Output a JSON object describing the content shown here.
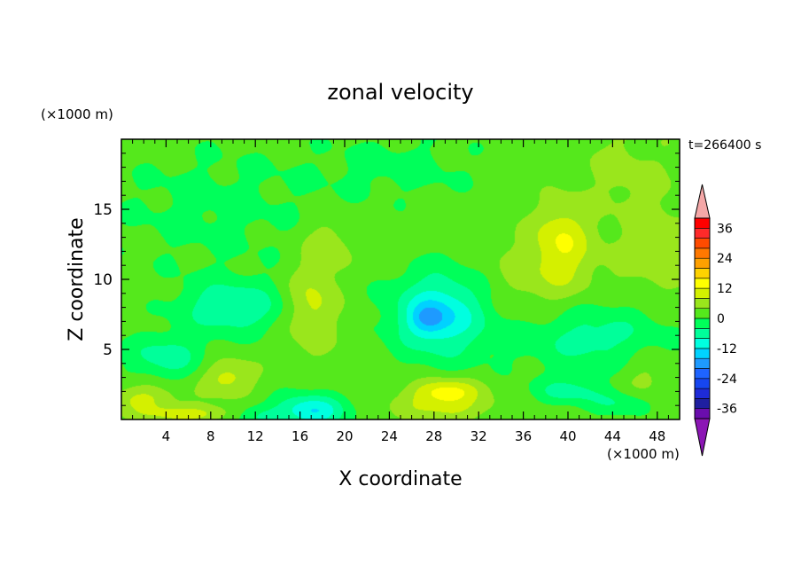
{
  "chart_data": {
    "type": "heatmap",
    "title": "zonal velocity",
    "xlabel": "X coordinate",
    "ylabel": "Z coordinate",
    "x_unit": "(×1000 m)",
    "y_unit": "(×1000 m)",
    "time_label": "t=266400 s",
    "xlim": [
      0,
      50
    ],
    "ylim": [
      0,
      20
    ],
    "x_ticks": [
      4,
      8,
      12,
      16,
      20,
      24,
      28,
      32,
      36,
      40,
      44,
      48
    ],
    "y_ticks": [
      5,
      10,
      15
    ],
    "colorbar": {
      "levels": [
        -40,
        -36,
        -32,
        -28,
        -24,
        -20,
        -16,
        -12,
        -8,
        -4,
        0,
        4,
        8,
        12,
        16,
        20,
        24,
        28,
        32,
        36,
        40
      ],
      "tick_labels": [
        36,
        24,
        12,
        0,
        -12,
        -24,
        -36
      ],
      "colors": [
        "#6a0dad",
        "#1f1fa0",
        "#1e2bd8",
        "#1646f0",
        "#1e64ff",
        "#1e9aff",
        "#00d2ff",
        "#00ffe0",
        "#00ff9a",
        "#00ff5a",
        "#55e81c",
        "#9ae61c",
        "#d4f000",
        "#ffff00",
        "#ffd200",
        "#ffa000",
        "#ff7800",
        "#ff4b00",
        "#ff2a2a",
        "#ff0000"
      ],
      "under_color": "#8b16b4",
      "over_color": "#f4a7a7"
    },
    "field": {
      "background": 2,
      "blobs": [
        {
          "x": 28.5,
          "z": 7.5,
          "sx": 4.2,
          "sz": 3.0,
          "amp": -14
        },
        {
          "x": 27.5,
          "z": 7.2,
          "sx": 1.6,
          "sz": 1.0,
          "amp": -8
        },
        {
          "x": 10,
          "z": 8,
          "sx": 4.5,
          "sz": 1.8,
          "amp": -10
        },
        {
          "x": 4,
          "z": 4.5,
          "sx": 3.5,
          "sz": 1.6,
          "amp": -8
        },
        {
          "x": 17,
          "z": 0.6,
          "sx": 3.0,
          "sz": 1.2,
          "amp": -14
        },
        {
          "x": 12,
          "z": 0.3,
          "sx": 2.2,
          "sz": 0.8,
          "amp": -6
        },
        {
          "x": 42,
          "z": 6,
          "sx": 7.0,
          "sz": 2.6,
          "amp": -8
        },
        {
          "x": 40,
          "z": 2,
          "sx": 3.0,
          "sz": 0.9,
          "amp": -7
        },
        {
          "x": 45,
          "z": 1.2,
          "sx": 3.0,
          "sz": 0.9,
          "amp": -6
        },
        {
          "x": 17,
          "z": 8,
          "sx": 2.2,
          "sz": 3.0,
          "amp": 8
        },
        {
          "x": 18.5,
          "z": 12.5,
          "sx": 2.0,
          "sz": 2.0,
          "amp": 5
        },
        {
          "x": 29,
          "z": 2,
          "sx": 3.0,
          "sz": 0.9,
          "amp": 12
        },
        {
          "x": 29,
          "z": 0.8,
          "sx": 4.5,
          "sz": 0.9,
          "amp": 6
        },
        {
          "x": 39.5,
          "z": 13,
          "sx": 2.3,
          "sz": 2.6,
          "amp": 8
        },
        {
          "x": 38,
          "z": 10,
          "sx": 5.0,
          "sz": 3.5,
          "amp": 5
        },
        {
          "x": 48,
          "z": 12,
          "sx": 4.0,
          "sz": 4.0,
          "amp": 4
        },
        {
          "x": 9.5,
          "z": 3,
          "sx": 2.3,
          "sz": 1.3,
          "amp": 8
        },
        {
          "x": 2,
          "z": 1.5,
          "sx": 3.0,
          "sz": 1.0,
          "amp": 7
        },
        {
          "x": 6,
          "z": 0.4,
          "sx": 4.0,
          "sz": 0.6,
          "amp": 8
        },
        {
          "x": 47,
          "z": 3,
          "sx": 2.5,
          "sz": 2.0,
          "amp": 4
        },
        {
          "x": 25,
          "z": 18,
          "sx": 8.0,
          "sz": 2.5,
          "amp": -3
        },
        {
          "x": 8,
          "z": 15,
          "sx": 10.0,
          "sz": 5.0,
          "amp": -3
        },
        {
          "x": 45,
          "z": 18,
          "sx": 4.0,
          "sz": 3.0,
          "amp": 3
        }
      ]
    }
  }
}
